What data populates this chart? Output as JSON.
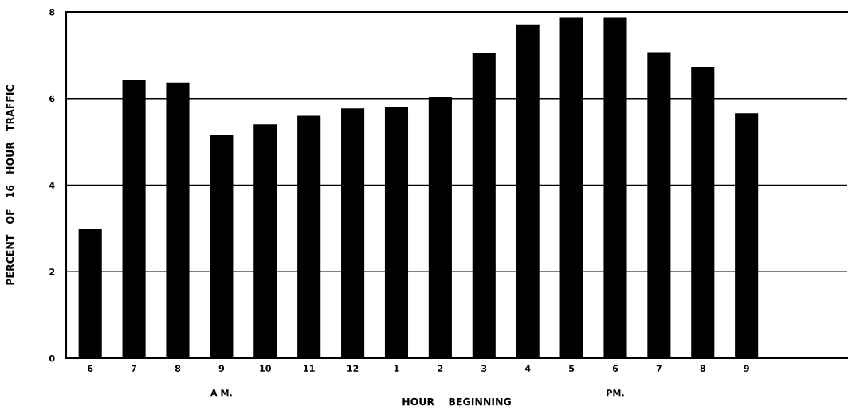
{
  "chart_data": {
    "type": "bar",
    "categories": [
      "6",
      "7",
      "8",
      "9",
      "10",
      "11",
      "12",
      "1",
      "2",
      "3",
      "4",
      "5",
      "6",
      "7",
      "8",
      "9"
    ],
    "values": [
      3.0,
      6.42,
      6.37,
      5.17,
      5.4,
      5.6,
      5.77,
      5.81,
      6.03,
      7.06,
      7.71,
      7.88,
      7.88,
      7.07,
      6.73,
      5.66
    ],
    "color": "#000000",
    "xlabel": "HOUR    BEGINNING",
    "ylabel": "PERCENT   OF   16   HOUR   TRAFFIC",
    "annotations": [
      "A M.",
      "PM."
    ],
    "ylim": [
      0,
      8
    ],
    "yticks": [
      0,
      2,
      4,
      6,
      8
    ],
    "grid": "y",
    "legend": false
  }
}
